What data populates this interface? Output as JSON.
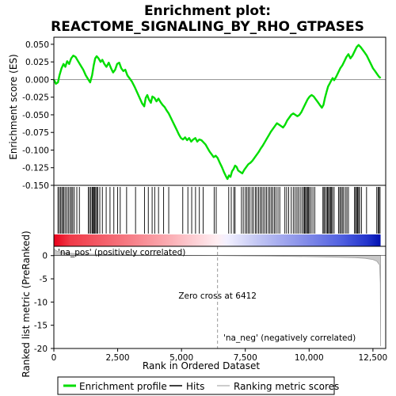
{
  "chart_data": {
    "type": "line",
    "title_line1": "Enrichment plot:",
    "title_line2": "REACTOME_SIGNALING_BY_RHO_GTPASES",
    "top_panel": {
      "ylabel": "Enrichment score (ES)",
      "ylim": [
        -0.15,
        0.06
      ],
      "yticks": [
        -0.15,
        -0.125,
        -0.1,
        -0.075,
        -0.05,
        -0.025,
        0.0,
        0.025,
        0.05
      ],
      "ytick_labels": [
        "-0.150",
        "-0.125",
        "-0.100",
        "-0.075",
        "-0.050",
        "-0.025",
        "0.000",
        "0.025",
        "0.050"
      ],
      "series_color": "#00dd00",
      "es_profile": [
        [
          0,
          0.0
        ],
        [
          80,
          -0.006
        ],
        [
          160,
          -0.004
        ],
        [
          220,
          0.006
        ],
        [
          300,
          0.016
        ],
        [
          380,
          0.022
        ],
        [
          450,
          0.018
        ],
        [
          520,
          0.026
        ],
        [
          600,
          0.022
        ],
        [
          680,
          0.03
        ],
        [
          760,
          0.034
        ],
        [
          850,
          0.032
        ],
        [
          950,
          0.026
        ],
        [
          1050,
          0.02
        ],
        [
          1150,
          0.014
        ],
        [
          1250,
          0.006
        ],
        [
          1350,
          0.0
        ],
        [
          1420,
          -0.004
        ],
        [
          1500,
          0.006
        ],
        [
          1560,
          0.02
        ],
        [
          1620,
          0.03
        ],
        [
          1680,
          0.033
        ],
        [
          1750,
          0.03
        ],
        [
          1830,
          0.025
        ],
        [
          1900,
          0.028
        ],
        [
          1980,
          0.022
        ],
        [
          2060,
          0.018
        ],
        [
          2150,
          0.024
        ],
        [
          2240,
          0.016
        ],
        [
          2320,
          0.01
        ],
        [
          2400,
          0.014
        ],
        [
          2480,
          0.022
        ],
        [
          2560,
          0.024
        ],
        [
          2640,
          0.016
        ],
        [
          2720,
          0.012
        ],
        [
          2800,
          0.014
        ],
        [
          2880,
          0.006
        ],
        [
          2960,
          0.002
        ],
        [
          3060,
          -0.003
        ],
        [
          3160,
          -0.01
        ],
        [
          3260,
          -0.018
        ],
        [
          3360,
          -0.026
        ],
        [
          3460,
          -0.034
        ],
        [
          3540,
          -0.038
        ],
        [
          3600,
          -0.026
        ],
        [
          3660,
          -0.022
        ],
        [
          3720,
          -0.028
        ],
        [
          3800,
          -0.033
        ],
        [
          3860,
          -0.024
        ],
        [
          3940,
          -0.026
        ],
        [
          4020,
          -0.031
        ],
        [
          4100,
          -0.027
        ],
        [
          4180,
          -0.032
        ],
        [
          4260,
          -0.036
        ],
        [
          4340,
          -0.039
        ],
        [
          4420,
          -0.044
        ],
        [
          4500,
          -0.048
        ],
        [
          4580,
          -0.054
        ],
        [
          4660,
          -0.06
        ],
        [
          4740,
          -0.066
        ],
        [
          4820,
          -0.072
        ],
        [
          4900,
          -0.078
        ],
        [
          4980,
          -0.083
        ],
        [
          5060,
          -0.085
        ],
        [
          5140,
          -0.082
        ],
        [
          5220,
          -0.086
        ],
        [
          5300,
          -0.083
        ],
        [
          5380,
          -0.088
        ],
        [
          5460,
          -0.085
        ],
        [
          5540,
          -0.083
        ],
        [
          5620,
          -0.088
        ],
        [
          5700,
          -0.085
        ],
        [
          5780,
          -0.086
        ],
        [
          5860,
          -0.089
        ],
        [
          5940,
          -0.092
        ],
        [
          6020,
          -0.097
        ],
        [
          6100,
          -0.102
        ],
        [
          6180,
          -0.106
        ],
        [
          6260,
          -0.11
        ],
        [
          6340,
          -0.108
        ],
        [
          6412,
          -0.111
        ],
        [
          6500,
          -0.118
        ],
        [
          6580,
          -0.124
        ],
        [
          6660,
          -0.131
        ],
        [
          6740,
          -0.137
        ],
        [
          6800,
          -0.141
        ],
        [
          6860,
          -0.136
        ],
        [
          6920,
          -0.138
        ],
        [
          6980,
          -0.13
        ],
        [
          7040,
          -0.127
        ],
        [
          7100,
          -0.122
        ],
        [
          7160,
          -0.124
        ],
        [
          7220,
          -0.129
        ],
        [
          7300,
          -0.131
        ],
        [
          7380,
          -0.133
        ],
        [
          7460,
          -0.128
        ],
        [
          7540,
          -0.124
        ],
        [
          7620,
          -0.12
        ],
        [
          7700,
          -0.118
        ],
        [
          7780,
          -0.115
        ],
        [
          7860,
          -0.111
        ],
        [
          7940,
          -0.107
        ],
        [
          8020,
          -0.103
        ],
        [
          8100,
          -0.098
        ],
        [
          8180,
          -0.094
        ],
        [
          8260,
          -0.089
        ],
        [
          8340,
          -0.084
        ],
        [
          8420,
          -0.079
        ],
        [
          8500,
          -0.074
        ],
        [
          8580,
          -0.07
        ],
        [
          8660,
          -0.066
        ],
        [
          8740,
          -0.062
        ],
        [
          8820,
          -0.064
        ],
        [
          8900,
          -0.066
        ],
        [
          8980,
          -0.068
        ],
        [
          9060,
          -0.064
        ],
        [
          9140,
          -0.058
        ],
        [
          9220,
          -0.054
        ],
        [
          9300,
          -0.05
        ],
        [
          9380,
          -0.048
        ],
        [
          9460,
          -0.05
        ],
        [
          9540,
          -0.052
        ],
        [
          9620,
          -0.05
        ],
        [
          9700,
          -0.046
        ],
        [
          9780,
          -0.04
        ],
        [
          9860,
          -0.034
        ],
        [
          9940,
          -0.028
        ],
        [
          10020,
          -0.024
        ],
        [
          10100,
          -0.022
        ],
        [
          10180,
          -0.024
        ],
        [
          10260,
          -0.028
        ],
        [
          10340,
          -0.032
        ],
        [
          10420,
          -0.036
        ],
        [
          10500,
          -0.04
        ],
        [
          10560,
          -0.036
        ],
        [
          10620,
          -0.026
        ],
        [
          10680,
          -0.018
        ],
        [
          10740,
          -0.01
        ],
        [
          10800,
          -0.006
        ],
        [
          10860,
          -0.002
        ],
        [
          10920,
          0.002
        ],
        [
          10980,
          -0.001
        ],
        [
          11060,
          0.004
        ],
        [
          11140,
          0.01
        ],
        [
          11220,
          0.016
        ],
        [
          11300,
          0.02
        ],
        [
          11380,
          0.026
        ],
        [
          11460,
          0.032
        ],
        [
          11540,
          0.036
        ],
        [
          11620,
          0.03
        ],
        [
          11700,
          0.034
        ],
        [
          11780,
          0.04
        ],
        [
          11860,
          0.046
        ],
        [
          11940,
          0.049
        ],
        [
          12020,
          0.046
        ],
        [
          12100,
          0.042
        ],
        [
          12180,
          0.038
        ],
        [
          12260,
          0.034
        ],
        [
          12340,
          0.028
        ],
        [
          12420,
          0.022
        ],
        [
          12500,
          0.016
        ],
        [
          12580,
          0.012
        ],
        [
          12660,
          0.008
        ],
        [
          12740,
          0.004
        ],
        [
          12800,
          0.002
        ]
      ]
    },
    "hits_panel": {
      "hit_positions": [
        160,
        210,
        260,
        310,
        360,
        400,
        460,
        520,
        580,
        640,
        690,
        740,
        800,
        900,
        1000,
        1350,
        1400,
        1450,
        1500,
        1530,
        1560,
        1600,
        1640,
        1680,
        1720,
        1800,
        1900,
        2050,
        2200,
        2350,
        2500,
        2600,
        2850,
        3200,
        3550,
        3700,
        3850,
        3950,
        4100,
        4300,
        4500,
        5050,
        5250,
        5400,
        5550,
        5700,
        5850,
        6280,
        6360,
        6850,
        6950,
        7050,
        7100,
        7350,
        7420,
        7500,
        7560,
        7620,
        7680,
        7760,
        7820,
        7900,
        7950,
        8020,
        8080,
        8140,
        8200,
        8270,
        8330,
        8400,
        8460,
        8520,
        8580,
        8640,
        8700,
        8780,
        8850,
        9050,
        9120,
        9200,
        9300,
        9380,
        9450,
        9520,
        9580,
        9650,
        9720,
        9780,
        9820,
        9860,
        9900,
        9940,
        9980,
        10020,
        10080,
        10150,
        10220,
        10540,
        10580,
        10620,
        10680,
        10720,
        10760,
        10800,
        10840,
        10880,
        10920,
        10980,
        11150,
        11200,
        11250,
        11300,
        11350,
        11420,
        11480,
        11540,
        11780,
        11820,
        11860,
        11900,
        11940,
        11980,
        12050,
        12250,
        12650,
        12700,
        12740,
        12780
      ]
    },
    "bottom_panel": {
      "ylabel": "Ranked list metric (PreRanked)",
      "xlabel": "Rank in Ordered Dataset",
      "xlim": [
        0,
        13000
      ],
      "ylim": [
        -20,
        2
      ],
      "yticks": [
        0,
        -5,
        -10,
        -15,
        -20
      ],
      "ytick_labels": [
        "0",
        "-5",
        "-10",
        "-15",
        "-20"
      ],
      "xticks": [
        0,
        2500,
        5000,
        7500,
        10000,
        12500
      ],
      "xtick_labels": [
        "0",
        "2,500",
        "5,000",
        "7,500",
        "10,000",
        "12,500"
      ],
      "metric_profile": [
        [
          0,
          1.6
        ],
        [
          50,
          1.2
        ],
        [
          150,
          0.9
        ],
        [
          400,
          0.6
        ],
        [
          800,
          0.45
        ],
        [
          1500,
          0.3
        ],
        [
          2500,
          0.2
        ],
        [
          3500,
          0.13
        ],
        [
          4500,
          0.08
        ],
        [
          5500,
          0.04
        ],
        [
          6412,
          0.0
        ],
        [
          7500,
          -0.06
        ],
        [
          8500,
          -0.12
        ],
        [
          9500,
          -0.18
        ],
        [
          10500,
          -0.26
        ],
        [
          11200,
          -0.35
        ],
        [
          11800,
          -0.45
        ],
        [
          12200,
          -0.6
        ],
        [
          12500,
          -0.85
        ],
        [
          12650,
          -1.2
        ],
        [
          12760,
          -2.0
        ],
        [
          12790,
          -6.0
        ],
        [
          12800,
          -19.5
        ]
      ],
      "zero_cross_label": "Zero cross at 6412",
      "zero_cross_rank": 6412,
      "pos_label": "'na_pos' (positively correlated)",
      "neg_label": "'na_neg' (negatively correlated)"
    },
    "legend": {
      "items": [
        {
          "label": "Enrichment profile",
          "color": "#00dd00"
        },
        {
          "label": "Hits",
          "color": "#000000"
        },
        {
          "label": "Ranking metric scores",
          "color": "#bbbbbb"
        }
      ]
    }
  }
}
